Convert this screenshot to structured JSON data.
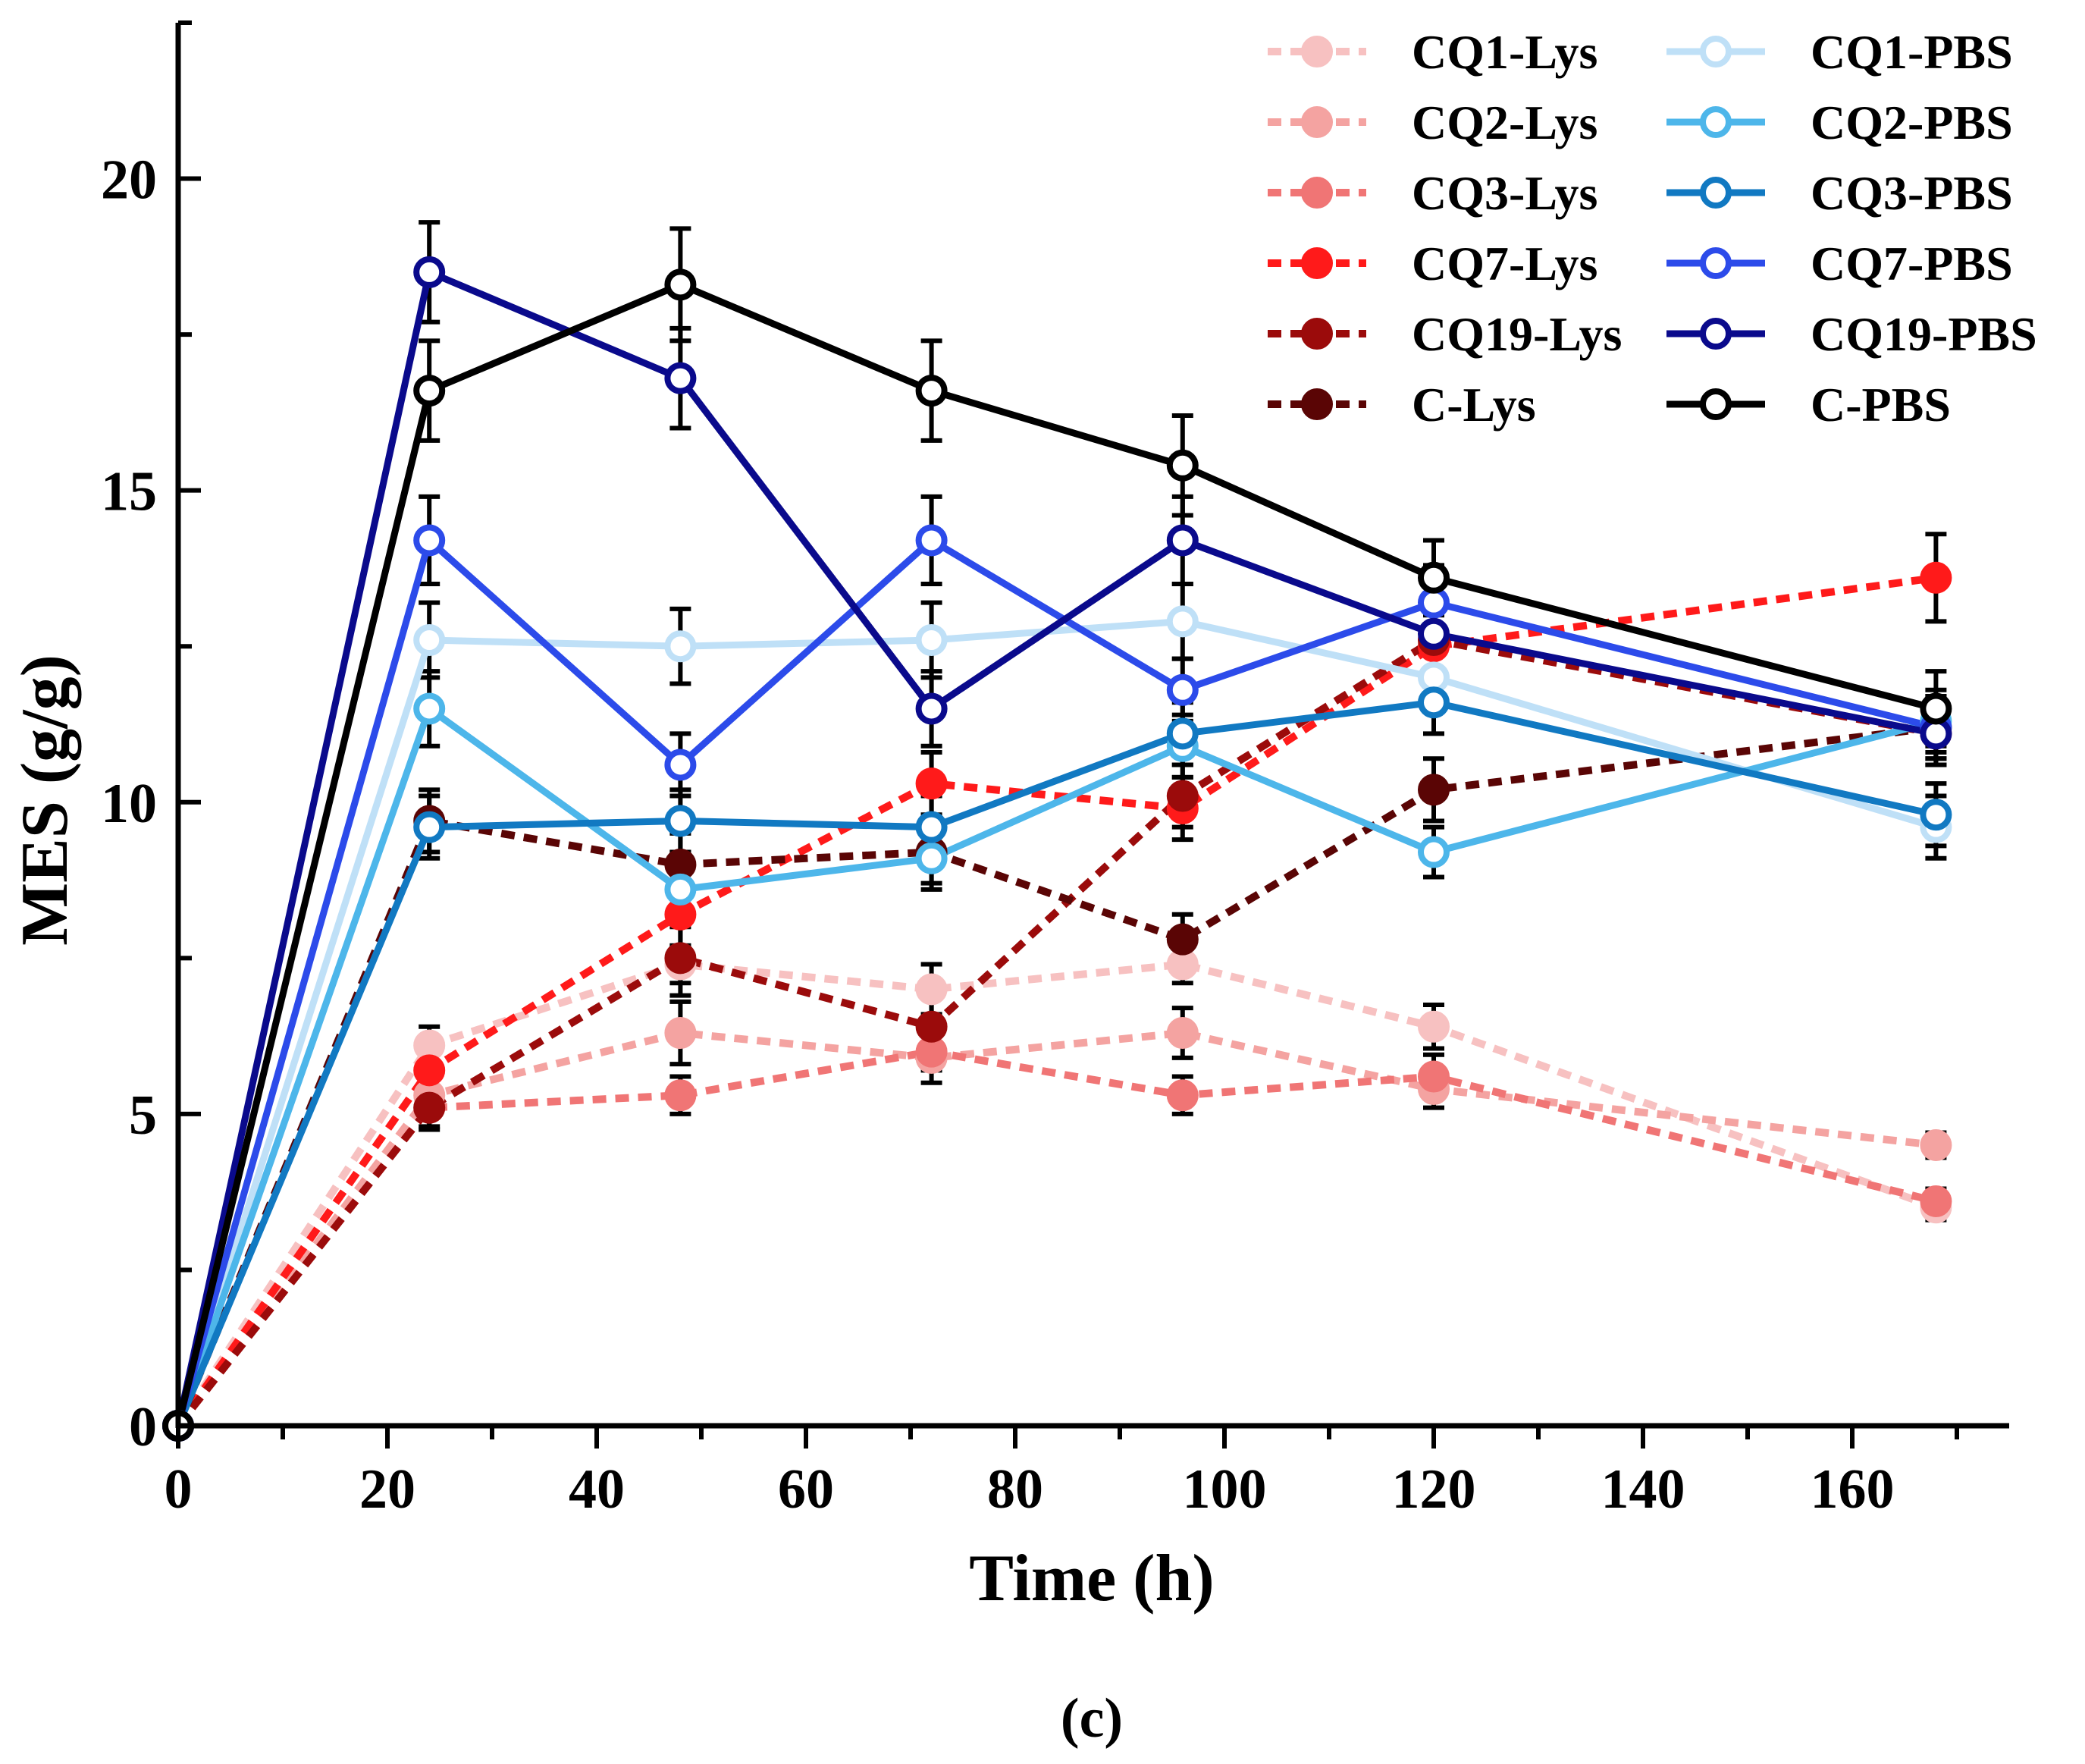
{
  "chart_data": {
    "type": "line",
    "xlabel": "Time (h)",
    "ylabel": "MES (g/g)",
    "xlim": [
      0,
      175
    ],
    "ylim": [
      0,
      22.5
    ],
    "xticks": [
      0,
      20,
      40,
      60,
      80,
      100,
      120,
      140,
      160
    ],
    "yticks": [
      0,
      5,
      10,
      15,
      20
    ],
    "grid": false,
    "legend_position": "top-right",
    "panel_label": "(c)",
    "x": [
      0,
      24,
      48,
      72,
      96,
      120,
      168
    ],
    "series": [
      {
        "name": "CQ1-Lys",
        "style": "dashed",
        "marker": "filled-circle",
        "color": "#f7c1c1",
        "values": [
          0,
          6.1,
          7.4,
          7.0,
          7.4,
          6.4,
          3.5
        ],
        "errors": [
          0,
          0.3,
          0.3,
          0.4,
          0.3,
          0.35,
          0.2
        ]
      },
      {
        "name": "CQ2-Lys",
        "style": "dashed",
        "marker": "filled-circle",
        "color": "#f4a3a1",
        "values": [
          0,
          5.3,
          6.3,
          5.9,
          6.3,
          5.4,
          4.5
        ],
        "errors": [
          0,
          0.35,
          0.5,
          0.4,
          0.4,
          0.3,
          0.2
        ]
      },
      {
        "name": "CQ3-Lys",
        "style": "dashed",
        "marker": "filled-circle",
        "color": "#f07575",
        "values": [
          0,
          5.1,
          5.3,
          6.0,
          5.3,
          5.6,
          3.6
        ],
        "errors": [
          0,
          0.3,
          0.3,
          0.3,
          0.3,
          0.35,
          0.2
        ]
      },
      {
        "name": "CQ7-Lys",
        "style": "dashed",
        "marker": "filled-circle",
        "color": "#ff1a1a",
        "values": [
          0,
          5.7,
          8.2,
          10.3,
          9.9,
          12.5,
          13.6
        ],
        "errors": [
          0,
          0.35,
          0.5,
          0.5,
          0.5,
          0.5,
          0.7
        ]
      },
      {
        "name": "CQ19-Lys",
        "style": "dashed",
        "marker": "filled-circle",
        "color": "#9b0b0b",
        "values": [
          0,
          5.1,
          7.5,
          6.4,
          10.1,
          12.6,
          11.1
        ],
        "errors": [
          0,
          0.35,
          0.6,
          0.5,
          0.5,
          0.5,
          0.5
        ]
      },
      {
        "name": "C-Lys",
        "style": "dashed",
        "marker": "filled-circle",
        "color": "#5a0505",
        "values": [
          0,
          9.7,
          9.0,
          9.2,
          7.8,
          10.2,
          11.2
        ],
        "errors": [
          0,
          0.5,
          0.5,
          0.5,
          0.4,
          0.5,
          0.5
        ]
      },
      {
        "name": "CQ1-PBS",
        "style": "solid",
        "marker": "open-circle",
        "color": "#bfe0f7",
        "values": [
          0,
          12.6,
          12.5,
          12.6,
          12.9,
          12.0,
          9.6
        ],
        "errors": [
          0,
          0.6,
          0.6,
          0.6,
          0.6,
          0.5,
          0.5
        ]
      },
      {
        "name": "CQ2-PBS",
        "style": "solid",
        "marker": "open-circle",
        "color": "#4db6ea",
        "values": [
          0,
          11.5,
          8.6,
          9.1,
          10.9,
          9.2,
          11.3
        ],
        "errors": [
          0,
          0.6,
          0.6,
          0.5,
          0.5,
          0.4,
          0.5
        ]
      },
      {
        "name": "CQ3-PBS",
        "style": "solid",
        "marker": "open-circle",
        "color": "#1179c2",
        "values": [
          0,
          9.6,
          9.7,
          9.6,
          11.1,
          11.6,
          9.8
        ],
        "errors": [
          0,
          0.5,
          0.5,
          0.5,
          0.5,
          0.5,
          0.5
        ]
      },
      {
        "name": "CQ7-PBS",
        "style": "solid",
        "marker": "open-circle",
        "color": "#2c4bea",
        "values": [
          0,
          14.2,
          10.6,
          14.2,
          11.8,
          13.2,
          11.2
        ],
        "errors": [
          0,
          0.7,
          0.5,
          0.7,
          0.5,
          0.6,
          0.5
        ]
      },
      {
        "name": "CQ19-PBS",
        "style": "solid",
        "marker": "open-circle",
        "color": "#0a0a8c",
        "values": [
          0,
          18.5,
          16.8,
          11.5,
          14.2,
          12.7,
          11.1
        ],
        "errors": [
          0,
          0.8,
          0.8,
          0.6,
          0.7,
          0.6,
          0.5
        ]
      },
      {
        "name": "C-PBS",
        "style": "solid",
        "marker": "open-circle",
        "color": "#000000",
        "values": [
          0,
          16.6,
          18.3,
          16.6,
          15.4,
          13.6,
          11.5
        ],
        "errors": [
          0,
          0.8,
          0.9,
          0.8,
          0.8,
          0.6,
          0.6
        ]
      }
    ]
  }
}
